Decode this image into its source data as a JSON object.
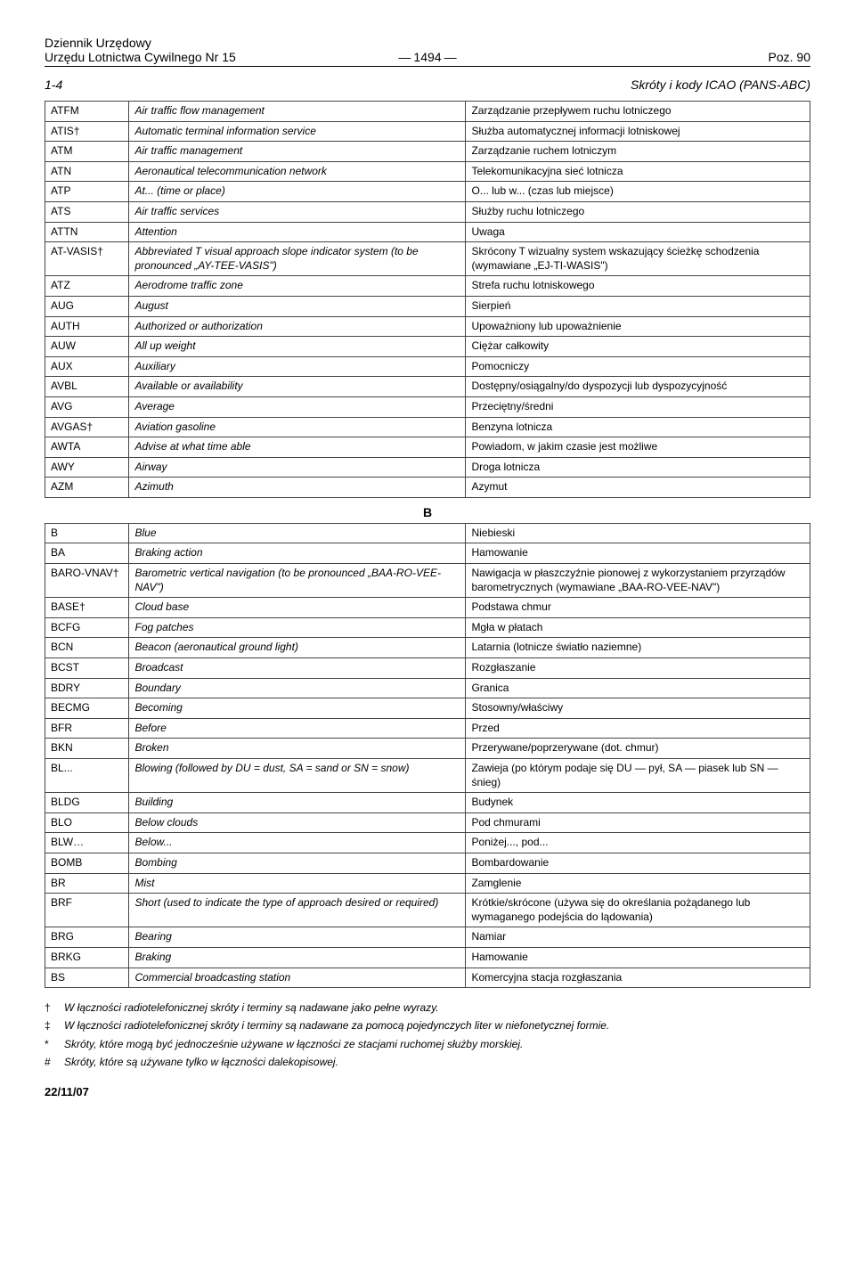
{
  "header": {
    "journal_line1": "Dziennik Urzędowy",
    "journal_line2": "Urzędu Lotnictwa Cywilnego Nr 15",
    "page_number": "1494",
    "position": "Poz. 90"
  },
  "section": {
    "left": "1-4",
    "right": "Skróty i kody ICAO (PANS-ABC)"
  },
  "rows_top": [
    [
      "ATFM",
      "Air traffic flow management",
      "Zarządzanie przepływem ruchu lotniczego"
    ],
    [
      "ATIS†",
      "Automatic terminal information service",
      "Służba automatycznej informacji lotniskowej"
    ],
    [
      "ATM",
      "Air traffic management",
      "Zarządzanie ruchem lotniczym"
    ],
    [
      "ATN",
      "Aeronautical telecommunication network",
      "Telekomunikacyjna sieć lotnicza"
    ],
    [
      "ATP",
      "At... (time or place)",
      "O... lub w... (czas lub miejsce)"
    ],
    [
      "ATS",
      "Air traffic services",
      "Służby ruchu lotniczego"
    ],
    [
      "ATTN",
      "Attention",
      "Uwaga"
    ],
    [
      "AT-VASIS†",
      "Abbreviated T visual approach slope indicator system (to be pronounced „AY-TEE-VASIS\")",
      "Skrócony T wizualny system wskazujący ścieżkę schodzenia (wymawiane „EJ-TI-WASIS\")"
    ],
    [
      "ATZ",
      "Aerodrome traffic zone",
      "Strefa ruchu lotniskowego"
    ],
    [
      "AUG",
      "August",
      "Sierpień"
    ],
    [
      "AUTH",
      "Authorized or authorization",
      "Upoważniony lub upoważnienie"
    ],
    [
      "AUW",
      "All up weight",
      "Ciężar całkowity"
    ],
    [
      "AUX",
      "Auxiliary",
      "Pomocniczy"
    ],
    [
      "AVBL",
      "Available or availability",
      "Dostępny/osiągalny/do dyspozycji lub dyspozycyjność"
    ],
    [
      "AVG",
      "Average",
      "Przeciętny/średni"
    ],
    [
      "AVGAS†",
      "Aviation gasoline",
      "Benzyna lotnicza"
    ],
    [
      "AWTA",
      "Advise at what time able",
      "Powiadom, w jakim czasie jest możliwe"
    ],
    [
      "AWY",
      "Airway",
      "Droga lotnicza"
    ],
    [
      "AZM",
      "Azimuth",
      "Azymut"
    ]
  ],
  "letter_head": "B",
  "rows_bottom": [
    [
      "B",
      "Blue",
      "Niebieski"
    ],
    [
      "BA",
      "Braking action",
      "Hamowanie"
    ],
    [
      "BARO-VNAV†",
      "Barometric vertical navigation (to be pronounced „BAA-RO-VEE-NAV\")",
      "Nawigacja w płaszczyźnie pionowej z wykorzystaniem przyrządów barometrycznych (wymawiane „BAA-RO-VEE-NAV\")"
    ],
    [
      "BASE†",
      "Cloud base",
      "Podstawa chmur"
    ],
    [
      "BCFG",
      "Fog patches",
      "Mgła w płatach"
    ],
    [
      "BCN",
      "Beacon (aeronautical ground light)",
      "Latarnia (lotnicze światło naziemne)"
    ],
    [
      "BCST",
      "Broadcast",
      "Rozgłaszanie"
    ],
    [
      "BDRY",
      "Boundary",
      "Granica"
    ],
    [
      "BECMG",
      "Becoming",
      "Stosowny/właściwy"
    ],
    [
      "BFR",
      "Before",
      "Przed"
    ],
    [
      "BKN",
      "Broken",
      "Przerywane/poprzerywane (dot. chmur)"
    ],
    [
      "BL...",
      "Blowing (followed by DU = dust, SA = sand or SN = snow)",
      "Zawieja (po którym podaje się DU — pył, SA — piasek lub SN — śnieg)"
    ],
    [
      "BLDG",
      "Building",
      "Budynek"
    ],
    [
      "BLO",
      "Below clouds",
      "Pod chmurami"
    ],
    [
      "BLW…",
      "Below...",
      "Poniżej..., pod..."
    ],
    [
      "BOMB",
      "Bombing",
      "Bombardowanie"
    ],
    [
      "BR",
      "Mist",
      "Zamglenie"
    ],
    [
      "BRF",
      "Short (used to indicate the type of approach desired or required)",
      "Krótkie/skrócone (używa się do określania pożądanego lub wymaganego podejścia do lądowania)"
    ],
    [
      "BRG",
      "Bearing",
      "Namiar"
    ],
    [
      "BRKG",
      "Braking",
      "Hamowanie"
    ],
    [
      "BS",
      "Commercial broadcasting station",
      "Komercyjna stacja rozgłaszania"
    ]
  ],
  "footnotes": [
    {
      "sym": "†",
      "text": "W łączności radiotelefonicznej skróty i terminy są nadawane jako pełne wyrazy."
    },
    {
      "sym": "‡",
      "text": "W łączności radiotelefonicznej skróty i terminy są nadawane za pomocą pojedynczych liter w niefonetycznej formie."
    },
    {
      "sym": "*",
      "text": "Skróty, które mogą być jednocześnie używane w łączności ze stacjami ruchomej służby morskiej."
    },
    {
      "sym": "#",
      "text": "Skróty, które są używane tylko w łączności dalekopisowej."
    }
  ],
  "page_date": "22/11/07"
}
